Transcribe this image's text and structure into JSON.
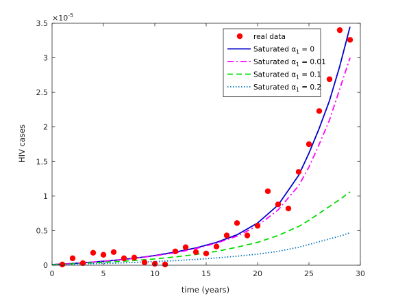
{
  "chart_data": {
    "type": "scatter",
    "xlabel": "time (years)",
    "ylabel": "HIV cases",
    "y_exponent_label": "×10",
    "y_exponent_power": "-5",
    "xlim": [
      0,
      30
    ],
    "ylim": [
      0,
      3.5
    ],
    "y_scale_factor": 1e-05,
    "xticks": [
      0,
      5,
      10,
      15,
      20,
      25,
      30
    ],
    "yticks": [
      0,
      0.5,
      1,
      1.5,
      2,
      2.5,
      3,
      3.5
    ],
    "ytick_labels": [
      "0",
      "0.5",
      "1",
      "1.5",
      "2",
      "2.5",
      "3",
      "3.5"
    ],
    "grid": false,
    "legend_position": "top-right",
    "series": [
      {
        "name": "real data",
        "kind": "scatter",
        "color": "#ff0000",
        "x": [
          1,
          2,
          3,
          4,
          5,
          6,
          7,
          8,
          9,
          10,
          11,
          12,
          13,
          14,
          15,
          16,
          17,
          18,
          19,
          20,
          21,
          22,
          23,
          24,
          25,
          26,
          27,
          28,
          29
        ],
        "y": [
          0.01,
          0.1,
          0.03,
          0.18,
          0.15,
          0.19,
          0.1,
          0.11,
          0.04,
          0.02,
          0.01,
          0.2,
          0.26,
          0.19,
          0.17,
          0.27,
          0.43,
          0.61,
          0.43,
          0.57,
          1.07,
          0.88,
          0.82,
          1.35,
          1.75,
          2.23,
          2.69,
          3.4,
          3.26
        ]
      },
      {
        "name": "Saturated α_1 = 0",
        "legend_prefix": "Saturated ",
        "legend_suffix": " = 0",
        "kind": "line",
        "dash": "solid",
        "color": "#0000cc",
        "x": [
          0,
          2,
          4,
          6,
          8,
          10,
          12,
          14,
          16,
          18,
          20,
          22,
          24,
          25,
          26,
          27,
          28,
          29
        ],
        "y": [
          0.01,
          0.025,
          0.045,
          0.07,
          0.1,
          0.14,
          0.19,
          0.25,
          0.33,
          0.44,
          0.61,
          0.87,
          1.3,
          1.62,
          1.98,
          2.38,
          2.88,
          3.45
        ]
      },
      {
        "name": "Saturated α_1 = 0.01",
        "legend_prefix": "Saturated ",
        "legend_suffix": " = 0.01",
        "kind": "line",
        "dash": "dashdot",
        "color": "#ff00ff",
        "x": [
          0,
          2,
          4,
          6,
          8,
          10,
          12,
          14,
          16,
          18,
          20,
          22,
          24,
          25,
          26,
          27,
          28,
          29
        ],
        "y": [
          0.01,
          0.025,
          0.045,
          0.068,
          0.098,
          0.135,
          0.18,
          0.24,
          0.32,
          0.42,
          0.57,
          0.8,
          1.15,
          1.42,
          1.75,
          2.1,
          2.55,
          3.0
        ]
      },
      {
        "name": "Saturated α_1 = 0.1",
        "legend_prefix": "Saturated ",
        "legend_suffix": " = 0.1",
        "kind": "line",
        "dash": "dashed",
        "color": "#00dd00",
        "x": [
          0,
          2,
          4,
          6,
          8,
          10,
          12,
          14,
          16,
          18,
          20,
          22,
          24,
          25,
          26,
          27,
          28,
          29
        ],
        "y": [
          0.01,
          0.02,
          0.035,
          0.05,
          0.068,
          0.09,
          0.12,
          0.155,
          0.2,
          0.26,
          0.33,
          0.43,
          0.56,
          0.65,
          0.75,
          0.85,
          0.95,
          1.06
        ]
      },
      {
        "name": "Saturated α_1 = 0.2",
        "legend_prefix": "Saturated ",
        "legend_suffix": " = 0.2",
        "kind": "line",
        "dash": "dotted",
        "color": "#0072bd",
        "x": [
          0,
          2,
          4,
          6,
          8,
          10,
          12,
          14,
          16,
          18,
          20,
          22,
          24,
          25,
          26,
          27,
          28,
          29
        ],
        "y": [
          0.01,
          0.015,
          0.022,
          0.03,
          0.04,
          0.052,
          0.066,
          0.084,
          0.105,
          0.13,
          0.16,
          0.2,
          0.26,
          0.3,
          0.34,
          0.38,
          0.42,
          0.47
        ]
      }
    ]
  }
}
